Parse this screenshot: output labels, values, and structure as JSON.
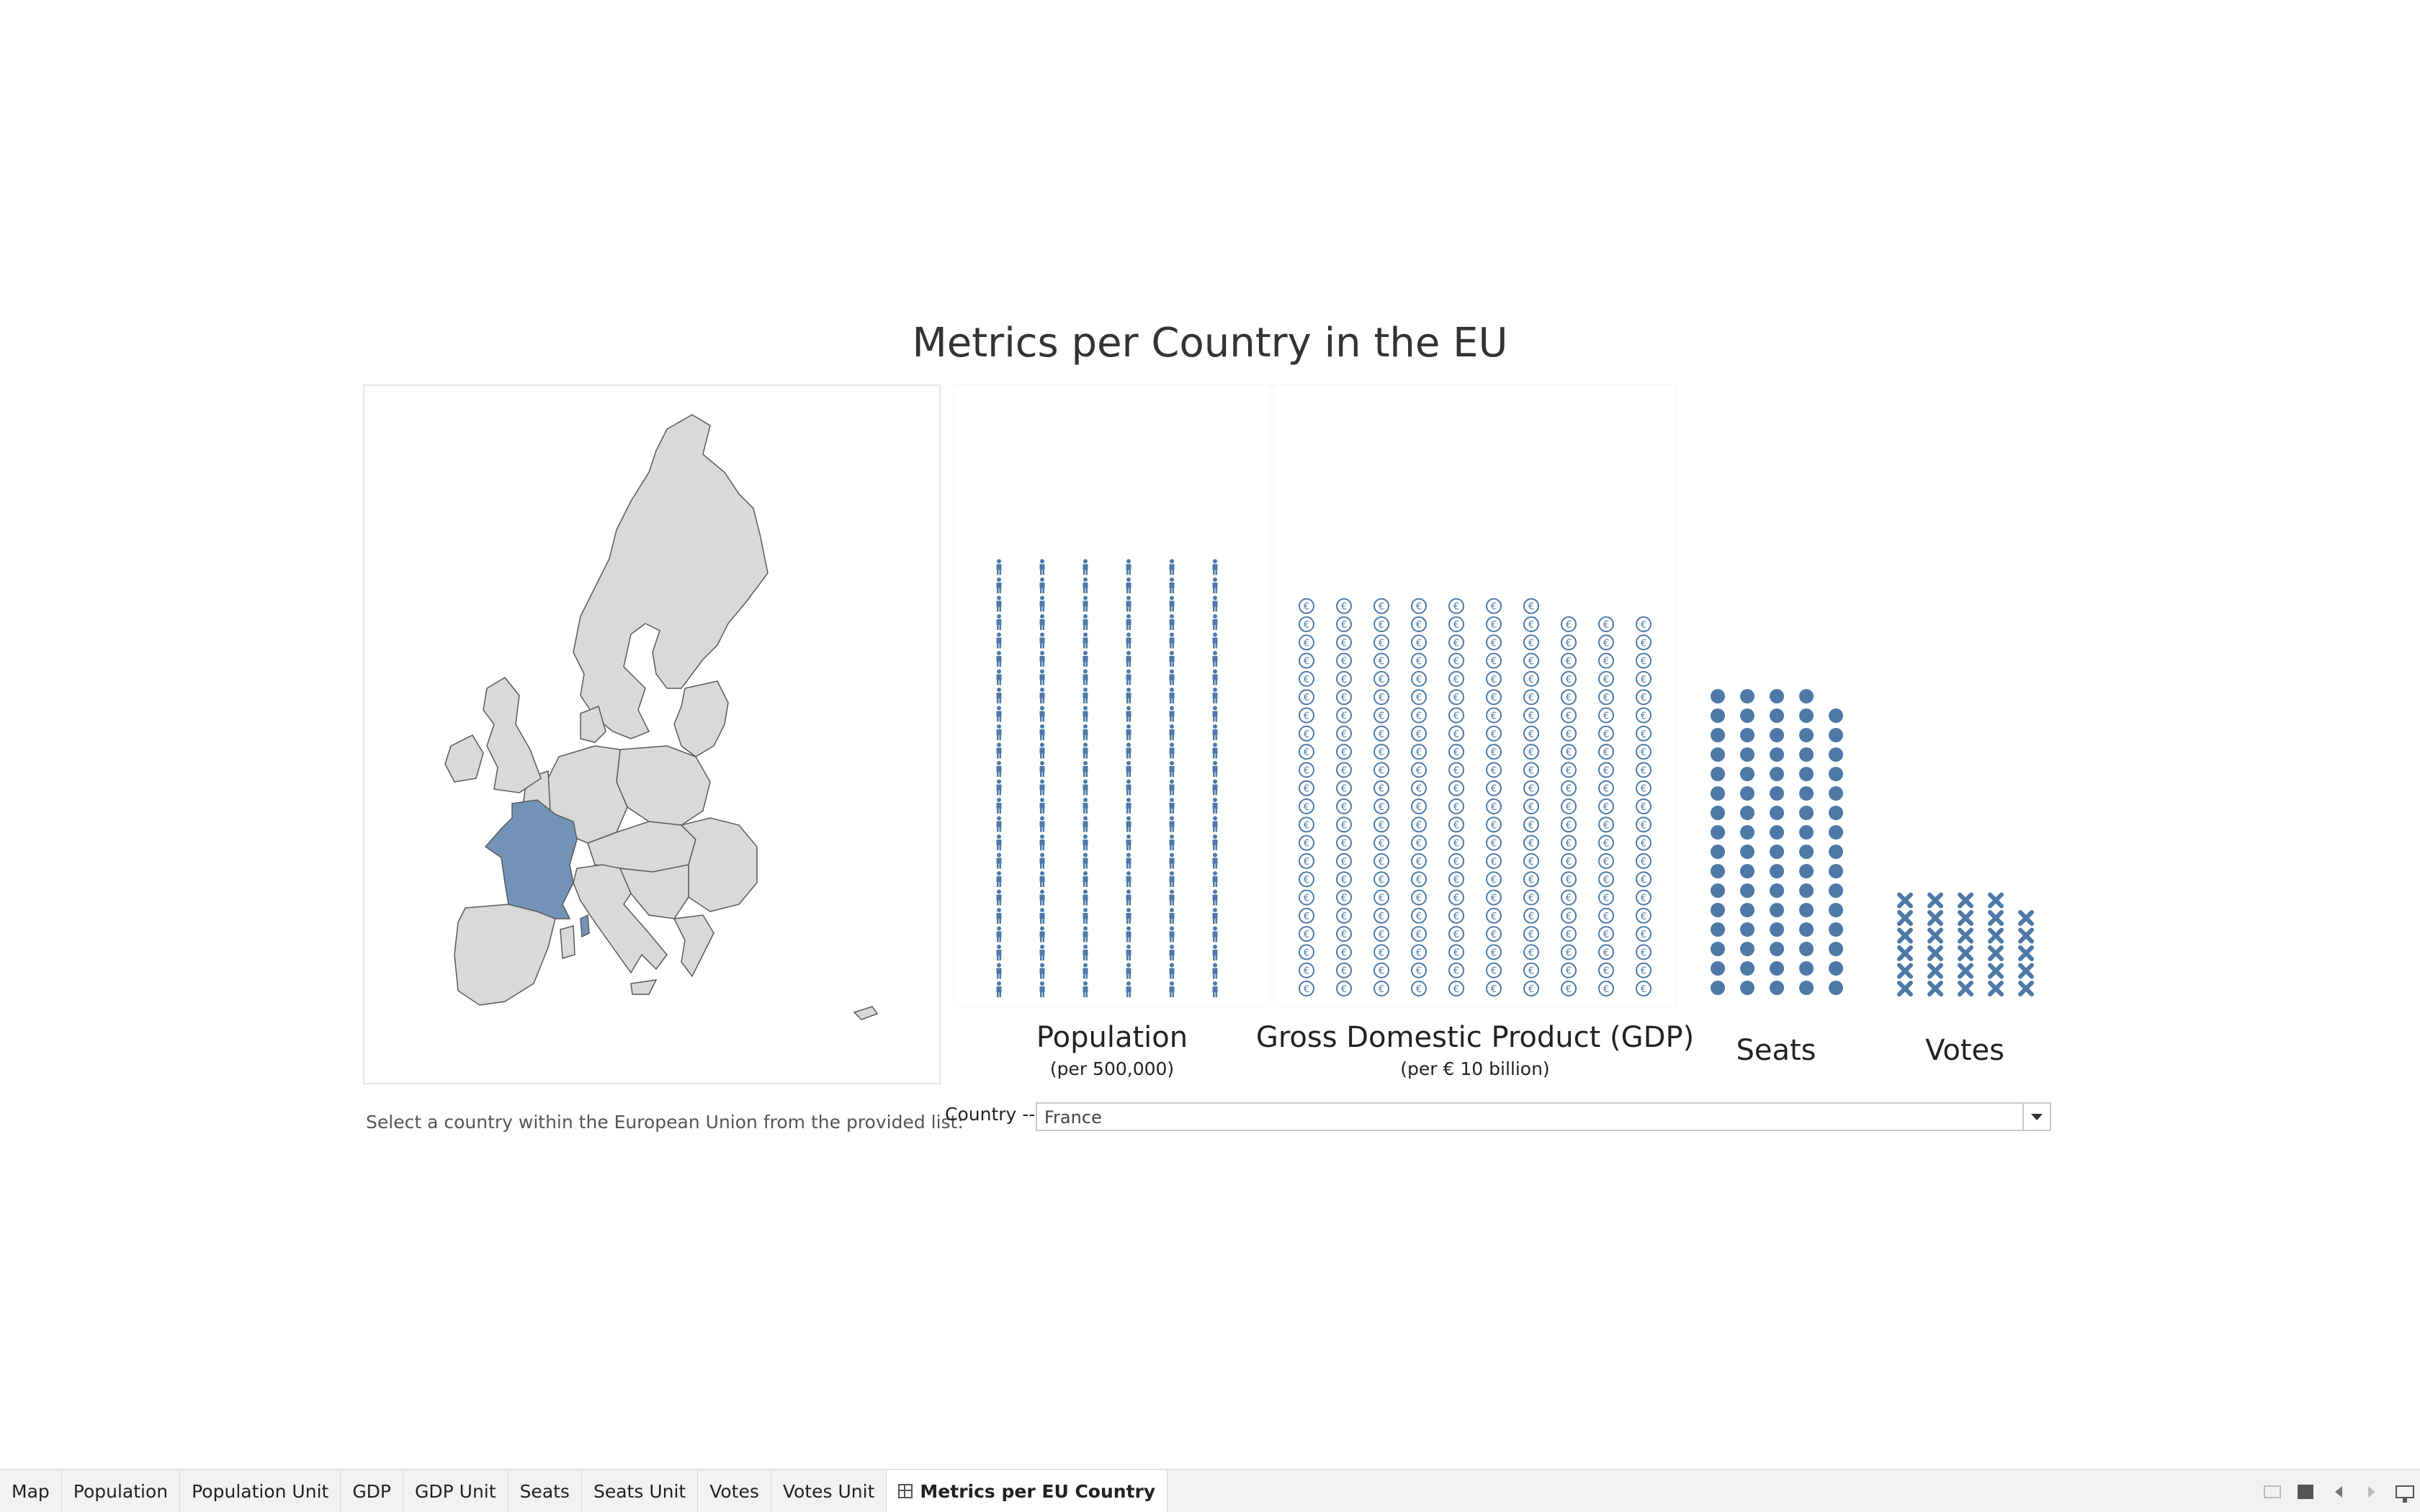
{
  "dashboard": {
    "title": "Metrics per Country in the EU",
    "instruction": "Select a country within the European Union from the provided list:",
    "filter": {
      "label": "Country ---",
      "value": "France"
    },
    "selected_country": "France"
  },
  "colors": {
    "accent": "#4e79a7",
    "map_selected": "#7394b8",
    "map_other": "#d9d9d9",
    "map_border": "#5a5a5a"
  },
  "icons": {
    "population": "person-icon",
    "gdp": "euro-coin-icon",
    "seats": "filled-circle-icon",
    "votes": "cross-icon"
  },
  "chart_data": [
    {
      "type": "scatter",
      "title": "Population",
      "subtitle": "(per 500,000)",
      "columns": [
        24,
        24,
        24,
        24,
        24,
        24
      ]
    },
    {
      "type": "scatter",
      "title": "Gross Domestic Product (GDP)",
      "subtitle": "(per € 10 billion)",
      "columns": [
        22,
        22,
        22,
        22,
        22,
        22,
        22,
        21,
        21,
        21
      ]
    },
    {
      "type": "scatter",
      "title": "Seats",
      "subtitle": "",
      "columns": [
        16,
        16,
        16,
        16,
        15
      ]
    },
    {
      "type": "scatter",
      "title": "Votes",
      "subtitle": "",
      "columns": [
        6,
        6,
        6,
        6,
        5
      ]
    }
  ],
  "tabs": [
    {
      "label": "Map",
      "active": false
    },
    {
      "label": "Population",
      "active": false
    },
    {
      "label": "Population Unit",
      "active": false
    },
    {
      "label": "GDP",
      "active": false
    },
    {
      "label": "GDP Unit",
      "active": false
    },
    {
      "label": "Seats",
      "active": false
    },
    {
      "label": "Seats Unit",
      "active": false
    },
    {
      "label": "Votes",
      "active": false
    },
    {
      "label": "Votes Unit",
      "active": false
    },
    {
      "label": "Metrics per EU Country",
      "active": true
    }
  ]
}
